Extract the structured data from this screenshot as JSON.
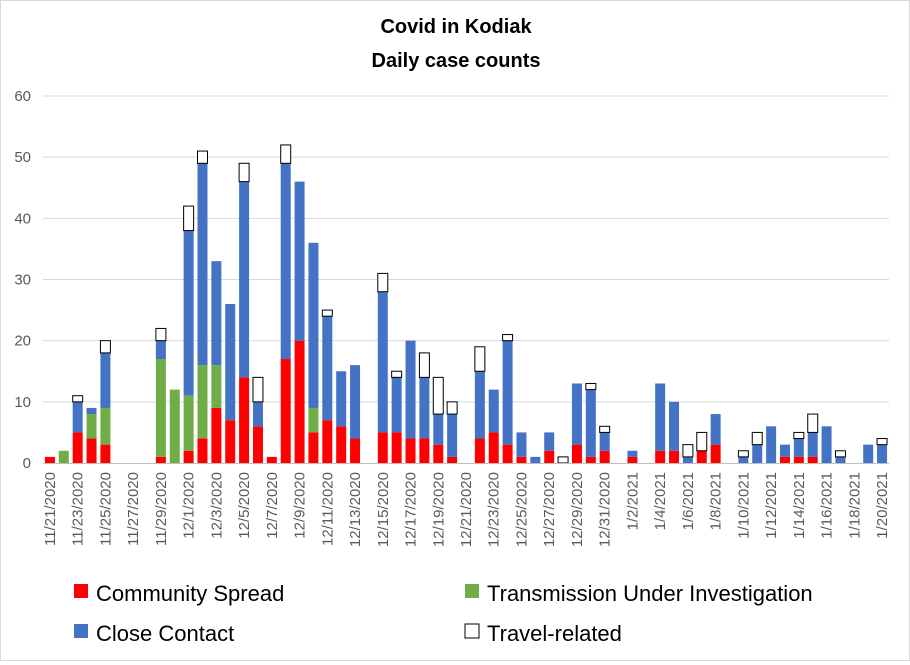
{
  "chart_data": {
    "type": "bar",
    "stacked": true,
    "title": "Covid in Kodiak",
    "subtitle": "Daily case counts",
    "xlabel": "",
    "ylabel": "",
    "ylim": [
      0,
      60
    ],
    "yticks": [
      0,
      10,
      20,
      30,
      40,
      50,
      60
    ],
    "grid": true,
    "legend_position": "bottom",
    "categories": [
      "11/21/2020",
      "11/22/2020",
      "11/23/2020",
      "11/24/2020",
      "11/25/2020",
      "11/26/2020",
      "11/27/2020",
      "11/28/2020",
      "11/29/2020",
      "11/30/2020",
      "12/1/2020",
      "12/2/2020",
      "12/3/2020",
      "12/4/2020",
      "12/5/2020",
      "12/6/2020",
      "12/7/2020",
      "12/8/2020",
      "12/9/2020",
      "12/10/2020",
      "12/11/2020",
      "12/12/2020",
      "12/13/2020",
      "12/14/2020",
      "12/15/2020",
      "12/16/2020",
      "12/17/2020",
      "12/18/2020",
      "12/19/2020",
      "12/20/2020",
      "12/21/2020",
      "12/22/2020",
      "12/23/2020",
      "12/24/2020",
      "12/25/2020",
      "12/26/2020",
      "12/27/2020",
      "12/28/2020",
      "12/29/2020",
      "12/30/2020",
      "12/31/2020",
      "1/1/2021",
      "1/2/2021",
      "1/3/2021",
      "1/4/2021",
      "1/5/2021",
      "1/6/2021",
      "1/7/2021",
      "1/8/2021",
      "1/9/2021",
      "1/10/2021",
      "1/11/2021",
      "1/12/2021",
      "1/13/2021",
      "1/14/2021",
      "1/15/2021",
      "1/16/2021",
      "1/17/2021",
      "1/18/2021",
      "1/19/2021",
      "1/20/2021"
    ],
    "tick_labels": [
      "11/21/2020",
      "11/23/2020",
      "11/25/2020",
      "11/27/2020",
      "11/29/2020",
      "12/1/2020",
      "12/3/2020",
      "12/5/2020",
      "12/7/2020",
      "12/9/2020",
      "12/11/2020",
      "12/13/2020",
      "12/15/2020",
      "12/17/2020",
      "12/19/2020",
      "12/21/2020",
      "12/23/2020",
      "12/25/2020",
      "12/27/2020",
      "12/29/2020",
      "12/31/2020",
      "1/2/2021",
      "1/4/2021",
      "1/6/2021",
      "1/8/2021",
      "1/10/2021",
      "1/12/2021",
      "1/14/2021",
      "1/16/2021",
      "1/18/2021",
      "1/20/2021"
    ],
    "series": [
      {
        "name": "Community Spread",
        "color": "#ff0000",
        "values": [
          1,
          0,
          5,
          4,
          3,
          0,
          0,
          0,
          1,
          0,
          2,
          4,
          9,
          7,
          14,
          6,
          1,
          17,
          20,
          5,
          7,
          6,
          4,
          0,
          5,
          5,
          4,
          4,
          3,
          1,
          0,
          4,
          5,
          3,
          1,
          0,
          2,
          0,
          3,
          1,
          2,
          0,
          1,
          0,
          2,
          2,
          0,
          2,
          3,
          0,
          0,
          0,
          0,
          1,
          1,
          1,
          0,
          0,
          0,
          0,
          0
        ]
      },
      {
        "name": "Transmission Under Investigation",
        "color": "#70ad47",
        "values": [
          0,
          2,
          0,
          4,
          6,
          0,
          0,
          0,
          16,
          12,
          9,
          12,
          7,
          0,
          0,
          0,
          0,
          0,
          0,
          4,
          0,
          0,
          0,
          0,
          0,
          0,
          0,
          0,
          0,
          0,
          0,
          0,
          0,
          0,
          0,
          0,
          0,
          0,
          0,
          0,
          0,
          0,
          0,
          0,
          0,
          0,
          0,
          0,
          0,
          0,
          0,
          0,
          0,
          0,
          0,
          0,
          0,
          0,
          0,
          0,
          0
        ]
      },
      {
        "name": "Close Contact",
        "color": "#4472c4",
        "values": [
          0,
          0,
          5,
          1,
          9,
          0,
          0,
          0,
          3,
          0,
          27,
          33,
          17,
          19,
          32,
          4,
          0,
          32,
          26,
          27,
          17,
          9,
          12,
          0,
          23,
          9,
          16,
          10,
          5,
          7,
          0,
          11,
          7,
          17,
          4,
          1,
          3,
          0,
          10,
          11,
          3,
          0,
          1,
          0,
          11,
          8,
          1,
          0,
          5,
          0,
          1,
          3,
          6,
          2,
          3,
          4,
          6,
          1,
          0,
          3,
          3
        ]
      },
      {
        "name": "Travel-related",
        "color": "#ffffff",
        "values": [
          0,
          0,
          1,
          0,
          2,
          0,
          0,
          0,
          2,
          0,
          4,
          2,
          0,
          0,
          3,
          4,
          0,
          3,
          0,
          0,
          1,
          0,
          0,
          0,
          3,
          1,
          0,
          4,
          6,
          2,
          0,
          4,
          0,
          1,
          0,
          0,
          0,
          1,
          0,
          1,
          1,
          0,
          0,
          0,
          0,
          0,
          2,
          3,
          0,
          0,
          1,
          2,
          0,
          0,
          1,
          3,
          0,
          1,
          0,
          0,
          1
        ]
      }
    ]
  }
}
